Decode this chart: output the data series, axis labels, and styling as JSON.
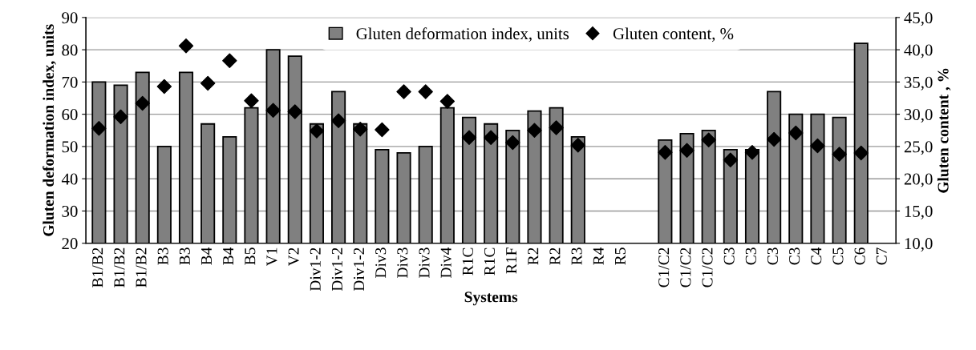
{
  "chart_data": {
    "type": "bar",
    "xlabel": "Systems",
    "ylabel": "Gluten deformation index, units",
    "y2label": "Gluten content , %",
    "categories": [
      "B1/B2",
      "B1/B2",
      "B1/B2",
      "B3",
      "B3",
      "B4",
      "B4",
      "B5",
      "V1",
      "V2",
      "Div1-2",
      "Div1-2",
      "Div1-2",
      "Div3",
      "Div3",
      "Div3",
      "Div4",
      "R1C",
      "R1C",
      "R1F",
      "R2",
      "R2",
      "R3",
      "R4",
      "R5",
      null,
      "C1/C2",
      "C1/C2",
      "C1/C2",
      "C3",
      "C3",
      "C3",
      "C3",
      "C4",
      "C5",
      "C6",
      "C7"
    ],
    "series": [
      {
        "name": "Gluten deformation index, units",
        "color": "#808080",
        "values": [
          70,
          69,
          73,
          50,
          73,
          57,
          53,
          62,
          80,
          78,
          57,
          67,
          57,
          49,
          48,
          50,
          62,
          59,
          57,
          55,
          61,
          62,
          53,
          null,
          null,
          null,
          52,
          54,
          55,
          49,
          49,
          67,
          60,
          60,
          59,
          82,
          null
        ]
      },
      {
        "name": "Gluten content, %",
        "type": "scatter",
        "axis": "y2",
        "color": "#000000",
        "marker": "diamond",
        "values": [
          27.8,
          29.6,
          31.7,
          34.3,
          40.6,
          34.8,
          38.3,
          32.1,
          30.6,
          30.4,
          27.4,
          29.0,
          27.7,
          27.6,
          33.5,
          33.5,
          32.0,
          26.4,
          26.4,
          25.6,
          27.5,
          27.9,
          25.2,
          null,
          null,
          null,
          24.1,
          24.4,
          26.0,
          22.9,
          24.1,
          26.1,
          27.1,
          25.1,
          23.8,
          24.0,
          null
        ]
      }
    ],
    "ylim": [
      20,
      90
    ],
    "yticks": [
      20,
      30,
      40,
      50,
      60,
      70,
      80,
      90
    ],
    "y2lim": [
      10,
      45
    ],
    "y2ticks": [
      {
        "value": 10,
        "label": "10,0"
      },
      {
        "value": 15,
        "label": "15,0"
      },
      {
        "value": 20,
        "label": "20,0"
      },
      {
        "value": 25,
        "label": "25,0"
      },
      {
        "value": 30,
        "label": "30,0"
      },
      {
        "value": 35,
        "label": "35,0"
      },
      {
        "value": 40,
        "label": "40,0"
      },
      {
        "value": 45,
        "label": "45,0"
      }
    ],
    "grid": "y",
    "legend": "top"
  }
}
